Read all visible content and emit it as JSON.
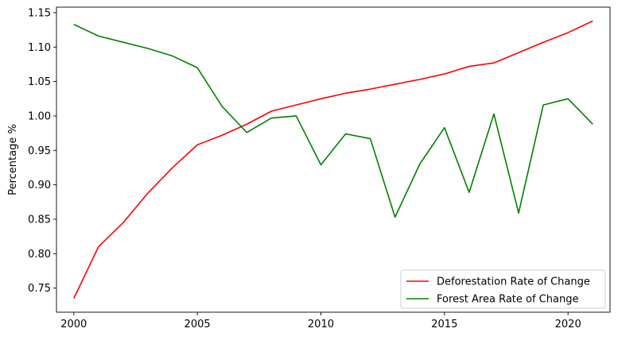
{
  "chart_data": {
    "type": "line",
    "title": "",
    "xlabel": "",
    "ylabel": "Percentage %",
    "x": [
      2000,
      2001,
      2002,
      2003,
      2004,
      2005,
      2006,
      2007,
      2008,
      2009,
      2010,
      2011,
      2012,
      2013,
      2014,
      2015,
      2016,
      2017,
      2018,
      2019,
      2020,
      2021
    ],
    "series": [
      {
        "name": "Deforestation Rate of Change",
        "color": "#ff0000",
        "values": [
          0.735,
          0.81,
          0.845,
          0.888,
          0.925,
          0.958,
          0.972,
          0.988,
          1.007,
          1.016,
          1.025,
          1.033,
          1.039,
          1.046,
          1.053,
          1.061,
          1.072,
          1.077,
          1.092,
          1.107,
          1.121,
          1.138
        ]
      },
      {
        "name": "Forest Area Rate of Change",
        "color": "#008000",
        "values": [
          1.133,
          1.116,
          1.107,
          1.098,
          1.087,
          1.07,
          1.014,
          0.976,
          0.997,
          1.0,
          0.929,
          0.974,
          0.967,
          0.853,
          0.93,
          0.983,
          0.889,
          1.003,
          0.859,
          1.016,
          1.025,
          0.988
        ]
      }
    ],
    "xlim": [
      1999.3,
      2021.7
    ],
    "ylim": [
      0.715,
      1.158
    ],
    "xticks": [
      2000,
      2005,
      2010,
      2015,
      2020
    ],
    "yticks": [
      0.75,
      0.8,
      0.85,
      0.9,
      0.95,
      1.0,
      1.05,
      1.1,
      1.15
    ],
    "ytick_labels": [
      "0.75",
      "0.80",
      "0.85",
      "0.90",
      "0.95",
      "1.00",
      "1.05",
      "1.10",
      "1.15"
    ],
    "grid": false,
    "legend_position": "bottom-right"
  }
}
